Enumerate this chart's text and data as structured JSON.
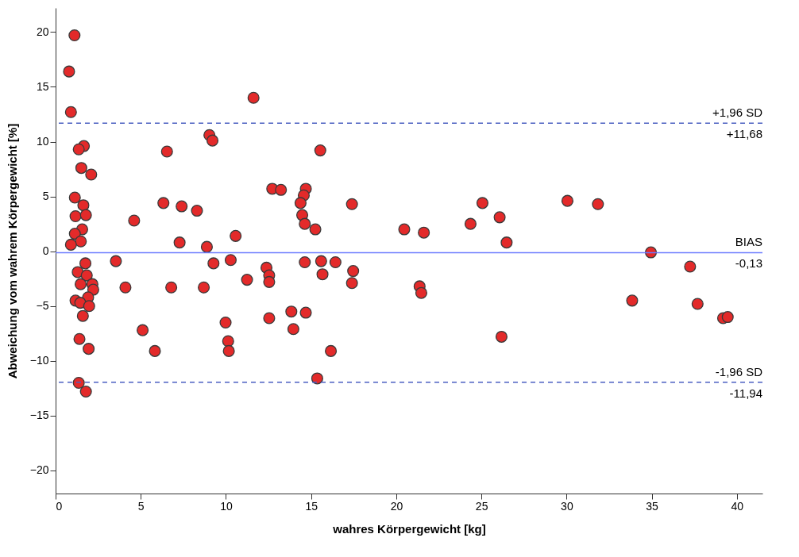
{
  "chart_data": {
    "type": "scatter",
    "xlabel": "wahres Körpergewicht [kg]",
    "ylabel": "Abweichung vom wahrem Körpergewicht [%]",
    "xlim": [
      0,
      41.5
    ],
    "ylim": [
      -22.1,
      22.2
    ],
    "xticks": [
      0,
      5,
      10,
      15,
      20,
      25,
      30,
      35,
      40
    ],
    "yticks": [
      -20,
      -15,
      -10,
      -5,
      0,
      5,
      10,
      15,
      20
    ],
    "grid": false,
    "marker": "circle",
    "x": [
      1.11,
      0.79,
      0.9,
      1.66,
      1.36,
      6.54,
      1.51,
      2.09,
      1.13,
      1.63,
      6.33,
      7.4,
      1.17,
      1.78,
      4.61,
      1.56,
      1.13,
      1.48,
      0.9,
      7.28,
      1.75,
      1.3,
      1.83,
      1.47,
      2.16,
      2.21,
      1.91,
      1.17,
      1.45,
      1.97,
      1.6,
      1.4,
      1.94,
      1.36,
      1.78,
      3.54,
      4.1,
      6.79,
      5.11,
      5.83,
      11.62,
      9.03,
      9.21,
      15.54,
      12.72,
      13.23,
      14.69,
      14.57,
      14.38,
      17.4,
      8.3,
      14.48,
      14.63,
      15.25,
      10.57,
      8.88,
      9.27,
      10.28,
      12.38,
      12.54,
      12.54,
      11.24,
      8.7,
      14.63,
      15.59,
      16.43,
      15.67,
      17.47,
      17.4,
      13.84,
      14.69,
      12.54,
      13.96,
      9.98,
      10.13,
      10.17,
      16.16,
      15.36,
      20.47,
      21.62,
      24.36,
      25.06,
      26.07,
      26.48,
      30.05,
      31.84,
      34.95,
      37.25,
      33.85,
      37.69,
      39.19,
      39.46,
      21.37,
      21.47,
      26.18
    ],
    "series": [
      {
        "color": "#e32a2a",
        "values": [
          19.7,
          16.4,
          12.7,
          9.6,
          9.3,
          9.1,
          7.6,
          7.0,
          4.9,
          4.2,
          4.4,
          4.1,
          3.2,
          3.3,
          2.8,
          2.0,
          1.6,
          0.9,
          0.6,
          0.8,
          -1.1,
          -1.9,
          -2.2,
          -3.0,
          -3.0,
          -3.5,
          -4.2,
          -4.5,
          -4.7,
          -5.0,
          -5.9,
          -8.0,
          -8.9,
          -12.0,
          -12.8,
          -0.9,
          -3.3,
          -3.3,
          -7.2,
          -9.1,
          14.0,
          10.6,
          10.1,
          9.2,
          5.7,
          5.6,
          5.7,
          5.1,
          4.4,
          4.3,
          3.7,
          3.3,
          2.5,
          2.0,
          1.4,
          0.4,
          -1.1,
          -0.8,
          -1.5,
          -2.2,
          -2.8,
          -2.6,
          -3.3,
          -1.0,
          -0.9,
          -1.0,
          -2.1,
          -1.8,
          -2.9,
          -5.5,
          -5.6,
          -6.1,
          -7.1,
          -6.5,
          -8.2,
          -9.1,
          -9.1,
          -11.6,
          2.0,
          1.7,
          2.5,
          4.4,
          3.1,
          0.8,
          4.6,
          4.3,
          -0.1,
          -1.4,
          -4.5,
          -4.8,
          -6.1,
          -6.0,
          -3.2,
          -3.8,
          -7.8
        ]
      }
    ],
    "ref_lines": [
      {
        "axis": "y",
        "value": 11.68,
        "label": "+1,96 SD",
        "color": "#4a5fc1",
        "line_style": "dashed"
      },
      {
        "axis": "y",
        "value": -0.13,
        "label": "BIAS",
        "color": "#6b7bff",
        "line_style": "solid"
      },
      {
        "axis": "y",
        "value": -11.94,
        "label": "-1,96 SD",
        "color": "#4a5fc1",
        "line_style": "dashed"
      }
    ],
    "annotations": [
      {
        "text": "+11,68",
        "y": 11.68
      },
      {
        "text": "-0,13",
        "y": -0.13
      },
      {
        "text": "-11,94",
        "y": -11.94
      }
    ]
  }
}
